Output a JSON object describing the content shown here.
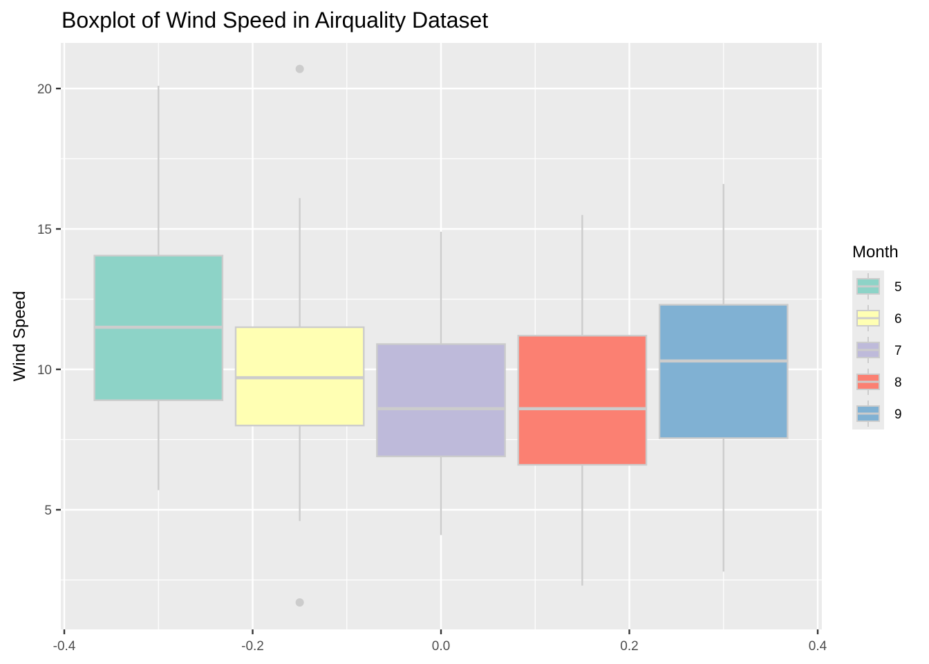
{
  "chart_data": {
    "type": "boxplot",
    "title": "Boxplot of Wind Speed in Airquality Dataset",
    "xlabel": "",
    "ylabel": "Wind Speed",
    "xlim": [
      -0.42,
      0.41
    ],
    "ylim": [
      1.2,
      21.6
    ],
    "x_ticks": [
      -0.4,
      -0.2,
      0.0,
      0.2,
      0.4
    ],
    "x_tick_labels": [
      "-0.4",
      "-0.2",
      "0.0",
      "0.2",
      "0.4"
    ],
    "y_ticks": [
      5,
      10,
      15,
      20
    ],
    "y_tick_labels": [
      "5",
      "10",
      "15",
      "20"
    ],
    "grid": true,
    "legend": {
      "title": "Month",
      "position": "right"
    },
    "box_width": 0.136,
    "series": [
      {
        "name": "5",
        "x": -0.3,
        "color": "#8DD3C7",
        "whisker_low": 5.7,
        "q1": 8.9,
        "median": 11.5,
        "q3": 14.05,
        "whisker_high": 20.1,
        "outliers": []
      },
      {
        "name": "6",
        "x": -0.15,
        "color": "#FFFFB3",
        "whisker_low": 4.6,
        "q1": 8.0,
        "median": 9.7,
        "q3": 11.5,
        "whisker_high": 16.1,
        "outliers": [
          20.7,
          1.7
        ]
      },
      {
        "name": "7",
        "x": 0.0,
        "color": "#BEBADA",
        "whisker_low": 4.1,
        "q1": 6.9,
        "median": 8.6,
        "q3": 10.9,
        "whisker_high": 14.9,
        "outliers": []
      },
      {
        "name": "8",
        "x": 0.15,
        "color": "#FB8072",
        "whisker_low": 2.3,
        "q1": 6.6,
        "median": 8.6,
        "q3": 11.2,
        "whisker_high": 15.5,
        "outliers": []
      },
      {
        "name": "9",
        "x": 0.3,
        "color": "#80B1D3",
        "whisker_low": 2.8,
        "q1": 7.55,
        "median": 10.3,
        "q3": 12.3,
        "whisker_high": 16.6,
        "outliers": []
      }
    ]
  },
  "style": {
    "panel_bg": "#EBEBEB",
    "grid_major": "#FFFFFF",
    "outline": "#CCCCCC"
  }
}
